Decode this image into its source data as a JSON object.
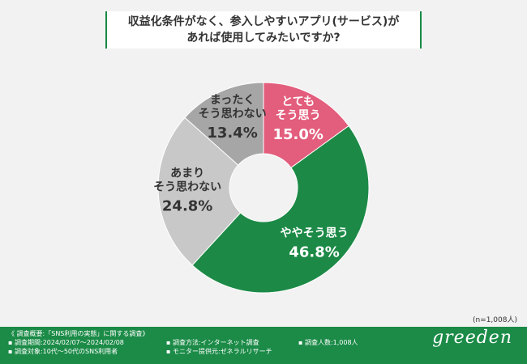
{
  "title": {
    "line1": "収益化条件がなく、参入しやすいアプリ(サービス)が",
    "line2": "あれば使用してみたいですか?"
  },
  "chart_data": {
    "type": "donut",
    "title": "収益化条件がなく、参入しやすいアプリ(サービス)があれば使用してみたいですか?",
    "slices": [
      {
        "label": [
          "とても",
          "そう思う"
        ],
        "value": 15.0,
        "display": "15.0%",
        "color": "#e35d7c",
        "text_color": "#ffffff"
      },
      {
        "label": [
          "ややそう思う"
        ],
        "value": 46.8,
        "display": "46.8%",
        "color": "#1c8a46",
        "text_color": "#ffffff"
      },
      {
        "label": [
          "あまり",
          "そう思わない"
        ],
        "value": 24.8,
        "display": "24.8%",
        "color": "#c8c8c8",
        "text_color": "#333333"
      },
      {
        "label": [
          "まったく",
          "そう思わない"
        ],
        "value": 13.4,
        "display": "13.4%",
        "color": "#a6a6a6",
        "text_color": "#333333"
      }
    ],
    "start": "12 o'clock, clockwise"
  },
  "sample_size": "(n=1,008人)",
  "footer": {
    "col1": [
      "《 調査概要:「SNS利用の実態」に関する調査》",
      "▪ 調査期間:2024/02/07〜2024/02/08",
      "▪ 調査対象:10代〜50代のSNS利用者"
    ],
    "col2": [
      "▪ 調査方法:インターネット調査",
      "▪ モニター提供元:ゼネラルリサーチ"
    ],
    "col3": [
      "▪ 調査人数:1,008人"
    ],
    "brand": "greeden"
  }
}
